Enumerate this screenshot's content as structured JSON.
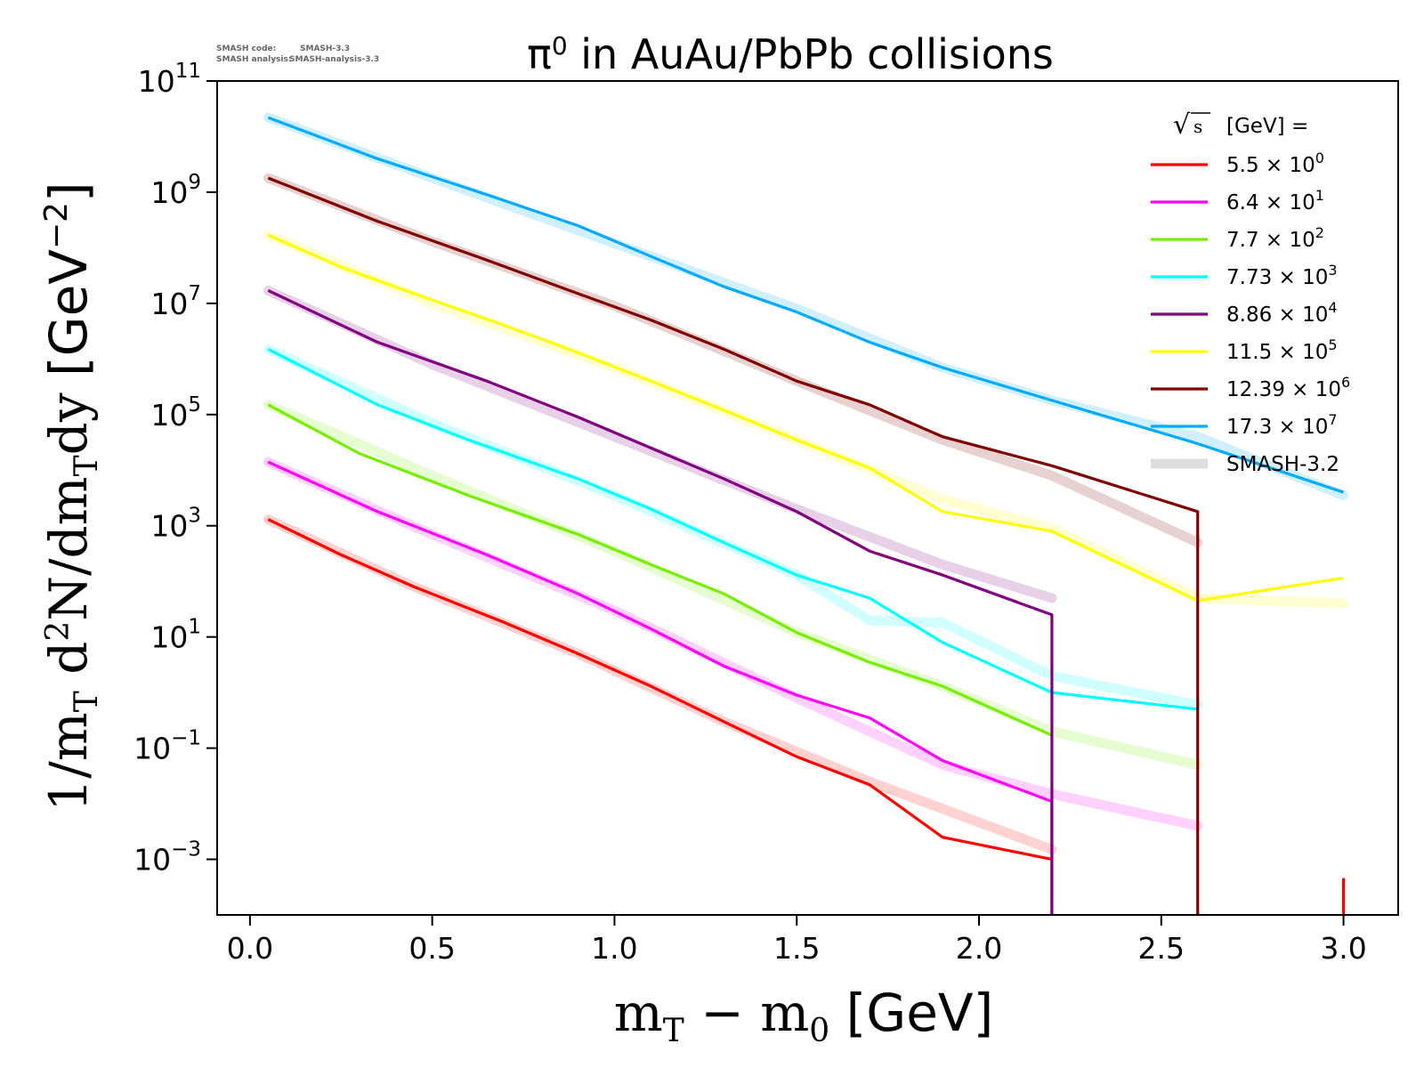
{
  "meta_top": {
    "line1_label": "SMASH code:",
    "line1_value": "SMASH-3.3",
    "line2_label": "SMASH analysis:",
    "line2_value": "SMASH-analysis-3.3"
  },
  "chart_data": {
    "type": "line",
    "title_main": "π",
    "title_sup": "0",
    "title_rest": " in AuAu/PbPb collisions",
    "xlabel": "m_T − m_0 [GeV]",
    "ylabel": "1/m_T d²N/dm_Tdy [GeV⁻²]",
    "xlim": [
      -0.09,
      3.15
    ],
    "ylim": [
      0.0001,
      100000000000.0
    ],
    "yscale": "log",
    "grid": false,
    "legend_position": "top-right",
    "legend_title": "[GeV] =",
    "x_ticks": [
      0.0,
      0.5,
      1.0,
      1.5,
      2.0,
      2.5,
      3.0
    ],
    "x_tick_labels": [
      "0.0",
      "0.5",
      "1.0",
      "1.5",
      "2.0",
      "2.5",
      "3.0"
    ],
    "y_ticks": [
      {
        "value": 100000000000.0,
        "base": "10",
        "exp": "11"
      },
      {
        "value": 1000000000.0,
        "base": "10",
        "exp": "9"
      },
      {
        "value": 10000000.0,
        "base": "10",
        "exp": "7"
      },
      {
        "value": 100000.0,
        "base": "10",
        "exp": "5"
      },
      {
        "value": 1000.0,
        "base": "10",
        "exp": "3"
      },
      {
        "value": 10.0,
        "base": "10",
        "exp": "1"
      },
      {
        "value": 0.1,
        "base": "10",
        "exp": "−1"
      },
      {
        "value": 0.001,
        "base": "10",
        "exp": "−3"
      }
    ],
    "series": [
      {
        "name": "5.5 × 10⁰",
        "mantissa": "5.5",
        "exp": "0",
        "color": "#ff0000",
        "x": [
          0.05,
          0.25,
          0.45,
          0.7,
          0.9,
          1.1,
          1.3,
          1.5,
          1.7,
          1.9,
          2.2
        ],
        "y": [
          1300,
          300,
          80,
          18,
          5,
          1.3,
          0.3,
          0.07,
          0.022,
          0.0025,
          0.001
        ],
        "ref_x": [
          0.05,
          0.45,
          0.9,
          1.3,
          1.7,
          2.2
        ],
        "ref_y": [
          1300,
          80,
          5,
          0.3,
          0.025,
          0.0015
        ],
        "extra_segment": {
          "x": 3.0,
          "y_from": 0.00046,
          "y_to": 0.0001
        }
      },
      {
        "name": "6.4 × 10¹",
        "mantissa": "6.4",
        "exp": "1",
        "color": "#ff00ff",
        "x": [
          0.05,
          0.35,
          0.65,
          0.9,
          1.1,
          1.3,
          1.5,
          1.7,
          1.9,
          2.2,
          2.2
        ],
        "y": [
          14000,
          1800,
          300,
          60,
          14,
          3,
          0.9,
          0.35,
          0.06,
          0.011,
          0.0001
        ],
        "ref_x": [
          0.05,
          0.5,
          1.0,
          1.5,
          1.9,
          2.2,
          2.6
        ],
        "ref_y": [
          14000,
          700,
          30,
          0.8,
          0.05,
          0.015,
          0.004
        ]
      },
      {
        "name": "7.7 × 10²",
        "mantissa": "7.7",
        "exp": "2",
        "color": "#77ee00",
        "x": [
          0.05,
          0.3,
          0.6,
          0.9,
          1.1,
          1.3,
          1.5,
          1.7,
          1.9,
          2.2
        ],
        "y": [
          150000,
          20000,
          3500,
          700,
          200,
          60,
          12,
          3.5,
          1.3,
          0.17
        ],
        "ref_x": [
          0.05,
          0.5,
          1.0,
          1.5,
          1.9,
          2.2,
          2.6
        ],
        "ref_y": [
          150000,
          8000,
          350,
          12,
          1.3,
          0.2,
          0.05
        ]
      },
      {
        "name": "7.73 × 10³",
        "mantissa": "7.73",
        "exp": "3",
        "color": "#00ffff",
        "x": [
          0.05,
          0.35,
          0.6,
          0.9,
          1.1,
          1.3,
          1.5,
          1.7,
          1.9,
          2.2,
          2.6
        ],
        "y": [
          1500000,
          150000,
          35000,
          7000,
          2000,
          500,
          130,
          50,
          8,
          1,
          0.5
        ],
        "ref_x": [
          0.05,
          0.5,
          1.0,
          1.5,
          1.7,
          1.9,
          2.2,
          2.6
        ],
        "ref_y": [
          1500000,
          70000,
          3500,
          130,
          20,
          18,
          2,
          0.6
        ]
      },
      {
        "name": "8.86 × 10⁴",
        "mantissa": "8.86",
        "exp": "4",
        "color": "#800080",
        "x": [
          0.05,
          0.35,
          0.65,
          0.9,
          1.1,
          1.3,
          1.5,
          1.7,
          1.9,
          2.2,
          2.2
        ],
        "y": [
          17000000,
          2000000,
          400000,
          90000,
          25000,
          7000,
          1800,
          350,
          130,
          25,
          0.0001
        ],
        "ref_x": [
          0.05,
          0.5,
          1.0,
          1.5,
          1.9,
          2.2
        ],
        "ref_y": [
          17000000,
          800000,
          40000,
          2000,
          200,
          50
        ]
      },
      {
        "name": "11.5 × 10⁵",
        "mantissa": "11.5",
        "exp": "5",
        "color": "#ffff00",
        "x": [
          0.05,
          0.25,
          0.45,
          0.7,
          0.9,
          1.1,
          1.3,
          1.5,
          1.7,
          1.9,
          2.2,
          2.6,
          3.0
        ],
        "y": [
          170000000,
          45000000,
          15000000,
          4000000,
          1300000,
          400000,
          120000,
          35000,
          11000,
          1800,
          800,
          45,
          115
        ],
        "ref_x": [
          0.05,
          0.5,
          1.0,
          1.5,
          1.9,
          2.2,
          2.6,
          3.0
        ],
        "ref_y": [
          170000000,
          10000000,
          700000,
          35000,
          3000,
          900,
          50,
          40
        ]
      },
      {
        "name": "12.39 × 10⁶",
        "mantissa": "12.39",
        "exp": "6",
        "color": "#800000",
        "x": [
          0.05,
          0.35,
          0.65,
          0.9,
          1.1,
          1.3,
          1.5,
          1.7,
          1.9,
          2.2,
          2.6,
          2.6
        ],
        "y": [
          1800000000,
          300000000,
          60000000,
          15000000,
          5000000,
          1500000,
          400000,
          150000,
          40000,
          12000,
          1800,
          0.0001
        ],
        "ref_x": [
          0.05,
          0.5,
          1.0,
          1.5,
          1.9,
          2.2,
          2.6
        ],
        "ref_y": [
          1800000000,
          130000000,
          9000000,
          400000,
          35000,
          8000,
          500
        ]
      },
      {
        "name": "17.3 × 10⁷",
        "mantissa": "17.3",
        "exp": "7",
        "color": "#00aaff",
        "x": [
          0.05,
          0.35,
          0.65,
          0.9,
          1.1,
          1.3,
          1.5,
          1.7,
          1.9,
          2.2,
          2.6,
          3.0
        ],
        "y": [
          22000000000,
          4000000000,
          900000000,
          250000000,
          70000000,
          20000000,
          7000000,
          2000000,
          700000,
          180000,
          30000,
          4000
        ],
        "ref_x": [
          0.05,
          0.5,
          1.0,
          1.5,
          1.9,
          2.2,
          2.6,
          3.0
        ],
        "ref_y": [
          22000000000,
          1800000000,
          120000000,
          8000000,
          700000,
          180000,
          40000,
          3500
        ]
      }
    ],
    "reference_label": "SMASH-3.2",
    "reference_color": "#dddddd"
  }
}
